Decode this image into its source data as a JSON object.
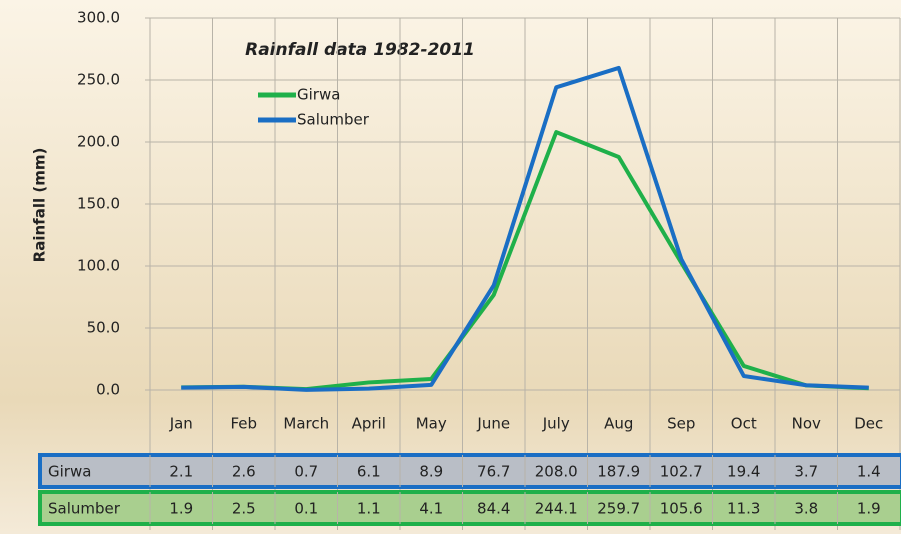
{
  "chart_data": {
    "type": "line",
    "title": "Rainfall data  1982-2011",
    "y_label": "Rainfall (mm)",
    "categories": [
      "Jan",
      "Feb",
      "March",
      "April",
      "May",
      "June",
      "July",
      "Aug",
      "Sep",
      "Oct",
      "Nov",
      "Dec"
    ],
    "series": [
      {
        "name": "Girwa",
        "color": "#1fb04a",
        "values": [
          2.1,
          2.6,
          0.7,
          6.1,
          8.9,
          76.7,
          208,
          187.9,
          102.7,
          19.4,
          3.7,
          1.4
        ],
        "value_labels": [
          "2.1",
          "2.6",
          "0.7",
          "6.1",
          "8.9",
          "76.7",
          "208.0",
          "187.9",
          "102.7",
          "19.4",
          "3.7",
          "1.4"
        ]
      },
      {
        "name": "Salumber",
        "color": "#1a6ec4",
        "values": [
          1.9,
          2.5,
          0.1,
          1.1,
          4.1,
          84.4,
          244.1,
          259.7,
          105.6,
          11.3,
          3.8,
          1.9
        ]
      }
    ],
    "ylim": [
      0,
      300
    ],
    "yticks": [
      {
        "value": 0,
        "label": "0.0"
      },
      {
        "value": 50,
        "label": "50.0"
      },
      {
        "value": 100,
        "label": "100.0"
      },
      {
        "value": 150,
        "label": "150.0"
      },
      {
        "value": 200,
        "label": "200.0"
      },
      {
        "value": 250,
        "label": "250.0"
      },
      {
        "value": 300,
        "label": "300.0"
      }
    ],
    "grid": true,
    "legend": "top-left"
  }
}
